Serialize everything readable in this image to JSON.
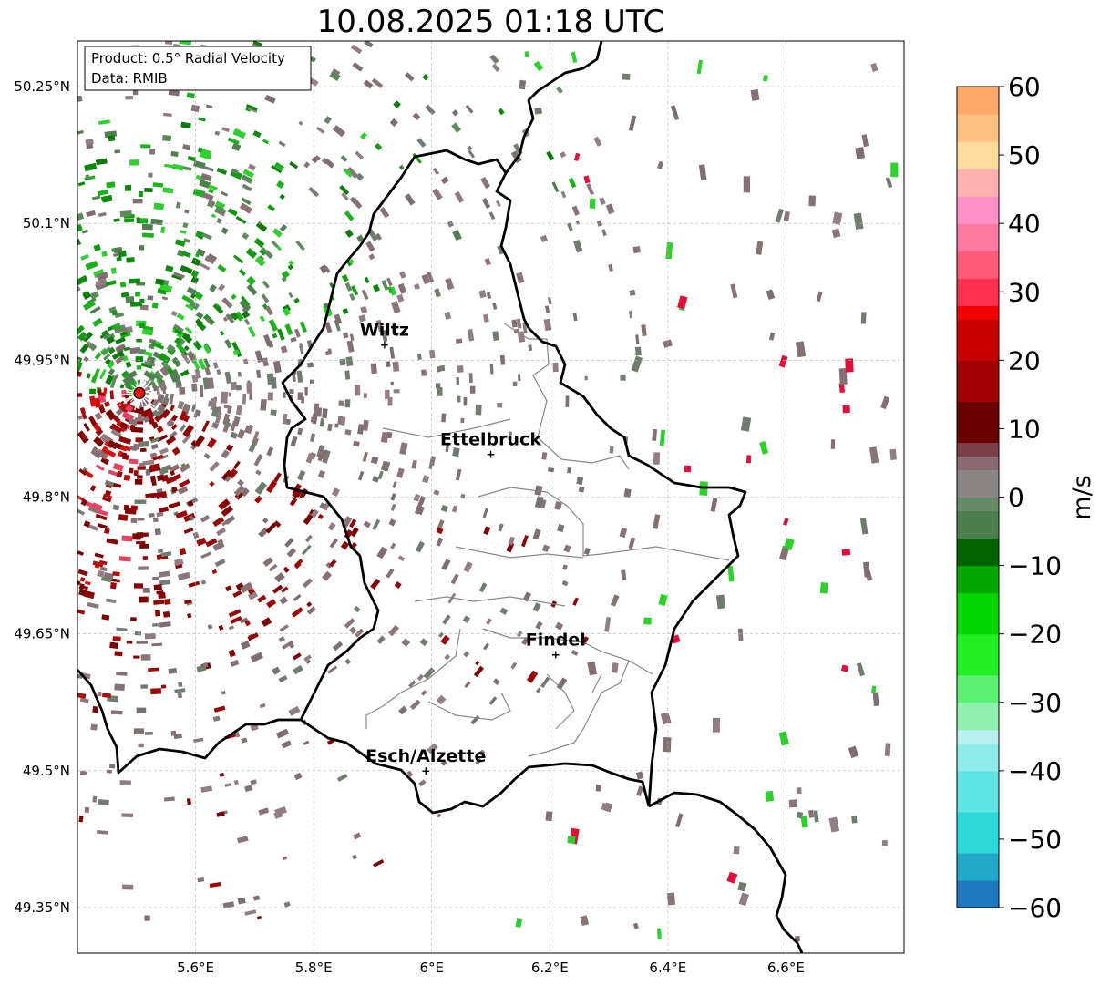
{
  "title": "10.08.2025 01:18 UTC",
  "info_box": {
    "product": "Product: 0.5° Radial Velocity",
    "data": "Data: RMIB"
  },
  "map": {
    "lon_range": [
      5.4,
      6.8
    ],
    "lat_range": [
      49.3,
      50.3
    ],
    "lon_ticks": [
      "5.6°E",
      "5.8°E",
      "6°E",
      "6.2°E",
      "6.4°E",
      "6.6°E"
    ],
    "lon_tick_values": [
      5.6,
      5.8,
      6.0,
      6.2,
      6.4,
      6.6
    ],
    "lat_ticks": [
      "49.35°N",
      "49.5°N",
      "49.65°N",
      "49.8°N",
      "49.95°N",
      "50.1°N",
      "50.25°N"
    ],
    "lat_tick_values": [
      49.35,
      49.5,
      49.65,
      49.8,
      49.95,
      50.1,
      50.25
    ],
    "grid": true,
    "radar_site": {
      "lon": 5.505,
      "lat": 49.914,
      "color": "#e81010"
    },
    "cities": [
      {
        "name": "Wiltz",
        "lon": 5.92,
        "lat": 49.967
      },
      {
        "name": "Ettelbruck",
        "lon": 6.1,
        "lat": 49.847
      },
      {
        "name": "Findel",
        "lon": 6.21,
        "lat": 49.627
      },
      {
        "name": "Esch/Alzette",
        "lon": 5.99,
        "lat": 49.5
      }
    ]
  },
  "colorbar": {
    "label": "m/s",
    "ticks": [
      "60",
      "50",
      "40",
      "30",
      "20",
      "10",
      "0",
      "−10",
      "−20",
      "−30",
      "−40",
      "−50",
      "−60"
    ],
    "range": [
      -60,
      60
    ]
  },
  "colors": {
    "border": "#000000",
    "canton_border": "#808080",
    "grid": "#b0b0b0",
    "inbound_green": "#0a8a0a",
    "outbound_red": "#8b0000",
    "near_zero": "#8a7476"
  }
}
